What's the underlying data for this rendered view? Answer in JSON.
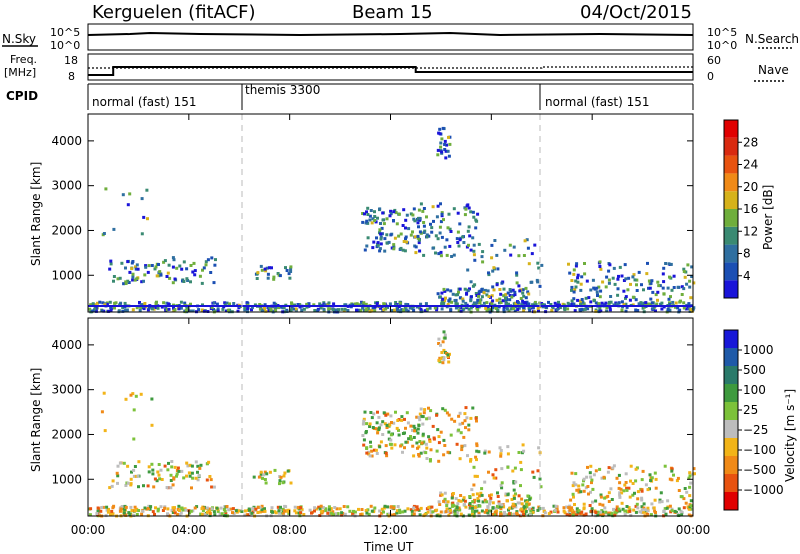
{
  "header": {
    "radar": "Kerguelen (fitACF)",
    "beam": "Beam 15",
    "date": "04/Oct/2015"
  },
  "top_panels": {
    "nsky_label": "N.Sky",
    "nsky_ticks": [
      "10^5",
      "10^0"
    ],
    "nsearch_label": "N.Search",
    "nsearch_ticks": [
      "10^5",
      "10^0"
    ],
    "freq_label": "Freq.",
    "freq_unit": "[MHz]",
    "freq_ticks": [
      "18",
      "8"
    ],
    "nave_label": "Nave",
    "nave_ticks": [
      "60",
      "0"
    ],
    "cpid_label": "CPID",
    "cpid_segments": [
      {
        "name": "normal (fast) 151",
        "start": 0,
        "end": 6
      },
      {
        "name": "themis 3300",
        "start": 6,
        "end": 18
      },
      {
        "name": "normal (fast) 151",
        "start": 18,
        "end": 24
      }
    ]
  },
  "colors": {
    "power": [
      "#1a14d9",
      "#1b4fb3",
      "#2f6fa0",
      "#3a8a72",
      "#6fae3c",
      "#d6b21b",
      "#f08a17",
      "#e85310",
      "#d92a10",
      "#e00000"
    ],
    "velocity": [
      "#1818d8",
      "#1f5aa8",
      "#2a7a6a",
      "#3e9a3e",
      "#7cc23a",
      "#bdbdbd",
      "#f2b418",
      "#f08a17",
      "#e85310",
      "#e00000"
    ]
  },
  "chart_data": [
    {
      "type": "heatmap",
      "title": "Power",
      "ylabel": "Slant Range [km]",
      "xlabel": "Time UT",
      "colorbar_label": "Power [dB]",
      "colorbar_ticks": [
        "4",
        "8",
        "12",
        "16",
        "20",
        "24",
        "28"
      ],
      "ylim": [
        180,
        4600
      ],
      "yticks": [
        "1000",
        "2000",
        "3000",
        "4000"
      ],
      "xlim": [
        0,
        24
      ],
      "xticks": [
        "00:00",
        "04:00",
        "08:00",
        "12:00",
        "16:00",
        "20:00",
        "00:00"
      ]
    },
    {
      "type": "heatmap",
      "title": "Velocity",
      "ylabel": "Slant Range [km]",
      "xlabel": "Time UT",
      "colorbar_label": "Velocity [m s⁻¹]",
      "colorbar_ticks": [
        "1000",
        "500",
        "100",
        "25",
        "−25",
        "−100",
        "−500",
        "−1000"
      ],
      "ylim": [
        180,
        4600
      ],
      "yticks": [
        "1000",
        "2000",
        "3000",
        "4000"
      ],
      "xlim": [
        0,
        24
      ],
      "xticks": [
        "00:00",
        "04:00",
        "08:00",
        "12:00",
        "16:00",
        "20:00",
        "00:00"
      ]
    }
  ]
}
